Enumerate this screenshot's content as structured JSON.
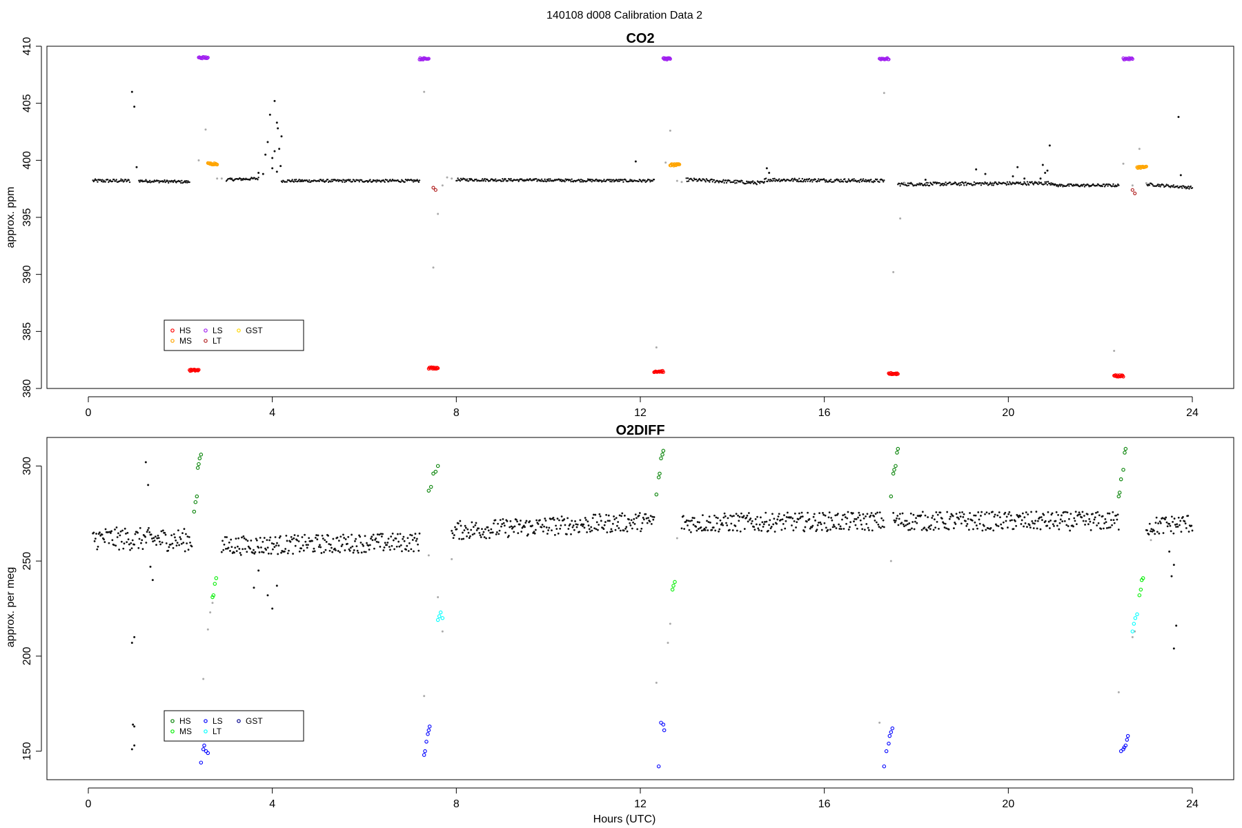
{
  "page": {
    "main_title": "140108   d008   Calibration Data 2"
  },
  "chart_data": [
    {
      "type": "scatter",
      "title": "CO2",
      "xlabel": "",
      "ylabel": "approx. ppm",
      "xlim": [
        -0.9,
        24.9
      ],
      "ylim": [
        380,
        410
      ],
      "xticks": [
        0,
        4,
        8,
        12,
        16,
        20,
        24
      ],
      "yticks": [
        380,
        385,
        390,
        395,
        400,
        405,
        410
      ],
      "legend": {
        "position": "bottom-left",
        "entries": [
          {
            "label": "HS",
            "color": "#ff0000"
          },
          {
            "label": "MS",
            "color": "#ffa500"
          },
          {
            "label": "LS",
            "color": "#a020f0"
          },
          {
            "label": "LT",
            "color": "#b22222"
          },
          {
            "label": "GST",
            "color": "#ffd700"
          }
        ]
      },
      "baseline_segments": [
        {
          "x": [
            0.1,
            0.9
          ],
          "y": [
            398.2,
            398.2
          ],
          "noise": 0.15
        },
        {
          "x": [
            1.1,
            2.2
          ],
          "y": [
            398.2,
            398.1
          ],
          "noise": 0.12
        },
        {
          "x": [
            3.0,
            3.7
          ],
          "y": [
            398.3,
            398.4
          ],
          "noise": 0.12
        },
        {
          "x": [
            4.2,
            7.2
          ],
          "y": [
            398.2,
            398.2
          ],
          "noise": 0.12
        },
        {
          "x": [
            8.0,
            12.3
          ],
          "y": [
            398.3,
            398.2
          ],
          "noise": 0.12
        },
        {
          "x": [
            13.0,
            14.7
          ],
          "y": [
            398.3,
            398.0
          ],
          "noise": 0.15
        },
        {
          "x": [
            14.7,
            17.3
          ],
          "y": [
            398.3,
            398.2
          ],
          "noise": 0.15
        },
        {
          "x": [
            17.6,
            21.0
          ],
          "y": [
            397.9,
            398.0
          ],
          "noise": 0.15
        },
        {
          "x": [
            21.0,
            22.4
          ],
          "y": [
            397.8,
            397.8
          ],
          "noise": 0.12
        },
        {
          "x": [
            23.0,
            24.0
          ],
          "y": [
            397.9,
            397.6
          ],
          "noise": 0.12
        }
      ],
      "scatter_black": [
        {
          "x": 0.95,
          "y": 406.0
        },
        {
          "x": 1.0,
          "y": 404.7
        },
        {
          "x": 1.05,
          "y": 399.4
        },
        {
          "x": 3.8,
          "y": 398.8
        },
        {
          "x": 3.85,
          "y": 400.5
        },
        {
          "x": 3.9,
          "y": 401.6
        },
        {
          "x": 3.95,
          "y": 404.0
        },
        {
          "x": 4.0,
          "y": 400.2
        },
        {
          "x": 4.05,
          "y": 400.8
        },
        {
          "x": 4.1,
          "y": 403.3
        },
        {
          "x": 4.12,
          "y": 402.8
        },
        {
          "x": 4.15,
          "y": 401.0
        },
        {
          "x": 4.18,
          "y": 399.5
        },
        {
          "x": 4.2,
          "y": 402.1
        },
        {
          "x": 4.05,
          "y": 405.2
        },
        {
          "x": 3.7,
          "y": 398.9
        },
        {
          "x": 4.0,
          "y": 399.3
        },
        {
          "x": 4.1,
          "y": 399.0
        },
        {
          "x": 11.9,
          "y": 399.9
        },
        {
          "x": 14.75,
          "y": 399.3
        },
        {
          "x": 14.8,
          "y": 398.9
        },
        {
          "x": 18.2,
          "y": 398.3
        },
        {
          "x": 19.3,
          "y": 399.2
        },
        {
          "x": 19.5,
          "y": 398.8
        },
        {
          "x": 20.1,
          "y": 398.6
        },
        {
          "x": 20.2,
          "y": 399.4
        },
        {
          "x": 20.35,
          "y": 398.4
        },
        {
          "x": 20.75,
          "y": 399.6
        },
        {
          "x": 20.8,
          "y": 398.9
        },
        {
          "x": 20.85,
          "y": 399.1
        },
        {
          "x": 20.7,
          "y": 398.4
        },
        {
          "x": 20.9,
          "y": 401.3
        },
        {
          "x": 23.7,
          "y": 403.8
        },
        {
          "x": 23.75,
          "y": 398.7
        }
      ],
      "scatter_gray": [
        {
          "x": 2.4,
          "y": 400.0
        },
        {
          "x": 2.55,
          "y": 402.7
        },
        {
          "x": 2.8,
          "y": 398.4
        },
        {
          "x": 2.9,
          "y": 398.4
        },
        {
          "x": 7.3,
          "y": 406.0
        },
        {
          "x": 7.5,
          "y": 390.6
        },
        {
          "x": 7.6,
          "y": 395.3
        },
        {
          "x": 7.7,
          "y": 397.8
        },
        {
          "x": 7.8,
          "y": 398.5
        },
        {
          "x": 7.9,
          "y": 398.4
        },
        {
          "x": 12.35,
          "y": 383.6
        },
        {
          "x": 12.55,
          "y": 399.8
        },
        {
          "x": 12.65,
          "y": 402.6
        },
        {
          "x": 12.8,
          "y": 398.2
        },
        {
          "x": 12.9,
          "y": 398.1
        },
        {
          "x": 17.3,
          "y": 405.9
        },
        {
          "x": 17.5,
          "y": 390.2
        },
        {
          "x": 17.65,
          "y": 394.9
        },
        {
          "x": 17.75,
          "y": 398.0
        },
        {
          "x": 22.3,
          "y": 383.3
        },
        {
          "x": 22.5,
          "y": 399.7
        },
        {
          "x": 22.7,
          "y": 397.8
        },
        {
          "x": 22.85,
          "y": 401.0
        },
        {
          "x": 23.0,
          "y": 398.0
        }
      ],
      "cal_groups": [
        {
          "name": "HS",
          "color": "#ff0000",
          "x": [
            2.2,
            2.4
          ],
          "y": 381.6
        },
        {
          "name": "LS",
          "color": "#a020f0",
          "x": [
            2.4,
            2.6
          ],
          "y": 409.0
        },
        {
          "name": "MS",
          "color": "#ffa500",
          "x": [
            2.6,
            2.8
          ],
          "y": 399.7
        },
        {
          "name": "HS",
          "color": "#ff0000",
          "x": [
            7.4,
            7.6
          ],
          "y": 381.8
        },
        {
          "name": "LS",
          "color": "#a020f0",
          "x": [
            7.2,
            7.4
          ],
          "y": 408.9
        },
        {
          "name": "HS",
          "color": "#ff0000",
          "x": [
            12.3,
            12.5
          ],
          "y": 381.5
        },
        {
          "name": "LS",
          "color": "#a020f0",
          "x": [
            12.5,
            12.65
          ],
          "y": 408.9
        },
        {
          "name": "MS",
          "color": "#ffa500",
          "x": [
            12.65,
            12.85
          ],
          "y": 399.6
        },
        {
          "name": "HS",
          "color": "#ff0000",
          "x": [
            17.4,
            17.6
          ],
          "y": 381.3
        },
        {
          "name": "LS",
          "color": "#a020f0",
          "x": [
            17.2,
            17.4
          ],
          "y": 408.9
        },
        {
          "name": "HS",
          "color": "#ff0000",
          "x": [
            22.3,
            22.5
          ],
          "y": 381.1
        },
        {
          "name": "LS",
          "color": "#a020f0",
          "x": [
            22.5,
            22.7
          ],
          "y": 408.9
        },
        {
          "name": "MS",
          "color": "#ffa500",
          "x": [
            22.8,
            23.0
          ],
          "y": 399.4
        }
      ],
      "lt_points": [
        {
          "x": 7.5,
          "y": 397.6,
          "color": "#b22222"
        },
        {
          "x": 7.55,
          "y": 397.4,
          "color": "#b22222"
        },
        {
          "x": 22.75,
          "y": 397.1,
          "color": "#b22222"
        },
        {
          "x": 22.7,
          "y": 397.4,
          "color": "#b22222"
        }
      ]
    },
    {
      "type": "scatter",
      "title": "O2DIFF",
      "xlabel": "Hours (UTC)",
      "ylabel": "approx. per meg",
      "xlim": [
        -0.9,
        24.9
      ],
      "ylim": [
        135,
        315
      ],
      "xticks": [
        0,
        4,
        8,
        12,
        16,
        20,
        24
      ],
      "yticks": [
        150,
        200,
        250,
        300
      ],
      "legend": {
        "position": "bottom-left",
        "entries": [
          {
            "label": "HS",
            "color": "#008000"
          },
          {
            "label": "MS",
            "color": "#00ee00"
          },
          {
            "label": "LS",
            "color": "#0000ff"
          },
          {
            "label": "LT",
            "color": "#00ffff"
          },
          {
            "label": "GST",
            "color": "#00008b"
          }
        ]
      },
      "baseline_segments": [
        {
          "x": [
            0.1,
            2.25
          ],
          "y": [
            262,
            261
          ],
          "noise": 6
        },
        {
          "x": [
            2.9,
            7.2
          ],
          "y": [
            258,
            260
          ],
          "noise": 5
        },
        {
          "x": [
            7.9,
            12.3
          ],
          "y": [
            266,
            271
          ],
          "noise": 5
        },
        {
          "x": [
            12.9,
            17.3
          ],
          "y": [
            270,
            271
          ],
          "noise": 5
        },
        {
          "x": [
            17.5,
            22.4
          ],
          "y": [
            271,
            271
          ],
          "noise": 5
        },
        {
          "x": [
            23.0,
            24.0
          ],
          "y": [
            268,
            270
          ],
          "noise": 5
        }
      ],
      "scatter_black": [
        {
          "x": 0.95,
          "y": 207
        },
        {
          "x": 1.0,
          "y": 210
        },
        {
          "x": 0.97,
          "y": 164
        },
        {
          "x": 1.0,
          "y": 163
        },
        {
          "x": 0.95,
          "y": 151
        },
        {
          "x": 1.0,
          "y": 153
        },
        {
          "x": 1.25,
          "y": 302
        },
        {
          "x": 1.3,
          "y": 290
        },
        {
          "x": 1.35,
          "y": 247
        },
        {
          "x": 1.4,
          "y": 240
        },
        {
          "x": 3.6,
          "y": 236
        },
        {
          "x": 3.9,
          "y": 232
        },
        {
          "x": 4.0,
          "y": 225
        },
        {
          "x": 4.1,
          "y": 237
        },
        {
          "x": 3.7,
          "y": 245
        },
        {
          "x": 23.6,
          "y": 248
        },
        {
          "x": 23.55,
          "y": 242
        },
        {
          "x": 23.65,
          "y": 216
        },
        {
          "x": 23.6,
          "y": 204
        },
        {
          "x": 23.5,
          "y": 255
        }
      ],
      "scatter_gray": [
        {
          "x": 2.5,
          "y": 188
        },
        {
          "x": 2.6,
          "y": 214
        },
        {
          "x": 2.65,
          "y": 223
        },
        {
          "x": 2.7,
          "y": 228
        },
        {
          "x": 7.3,
          "y": 179
        },
        {
          "x": 7.4,
          "y": 253
        },
        {
          "x": 7.6,
          "y": 231
        },
        {
          "x": 7.7,
          "y": 213
        },
        {
          "x": 7.9,
          "y": 251
        },
        {
          "x": 12.35,
          "y": 186
        },
        {
          "x": 12.6,
          "y": 207
        },
        {
          "x": 12.65,
          "y": 217
        },
        {
          "x": 12.8,
          "y": 262
        },
        {
          "x": 17.2,
          "y": 165
        },
        {
          "x": 17.45,
          "y": 250
        },
        {
          "x": 22.4,
          "y": 181
        },
        {
          "x": 22.7,
          "y": 210
        },
        {
          "x": 22.75,
          "y": 213
        },
        {
          "x": 23.1,
          "y": 261
        }
      ],
      "marker_points": [
        {
          "name": "HS",
          "color": "#008000",
          "points": [
            [
              2.3,
              276
            ],
            [
              2.33,
              281
            ],
            [
              2.36,
              284
            ],
            [
              2.38,
              299
            ],
            [
              2.4,
              301
            ],
            [
              2.42,
              304
            ],
            [
              2.45,
              306
            ],
            [
              7.4,
              287
            ],
            [
              7.45,
              289
            ],
            [
              7.5,
              296
            ],
            [
              7.55,
              297
            ],
            [
              7.6,
              300
            ],
            [
              12.35,
              285
            ],
            [
              12.4,
              294
            ],
            [
              12.42,
              296
            ],
            [
              12.45,
              304
            ],
            [
              12.48,
              306
            ],
            [
              12.5,
              308
            ],
            [
              17.45,
              284
            ],
            [
              17.5,
              296
            ],
            [
              17.52,
              298
            ],
            [
              17.55,
              300
            ],
            [
              17.58,
              307
            ],
            [
              17.6,
              309
            ],
            [
              22.4,
              284
            ],
            [
              22.42,
              286
            ],
            [
              22.45,
              293
            ],
            [
              22.5,
              298
            ],
            [
              22.53,
              307
            ],
            [
              22.55,
              309
            ]
          ]
        },
        {
          "name": "MS",
          "color": "#00ee00",
          "points": [
            [
              2.7,
              231
            ],
            [
              2.72,
              232
            ],
            [
              2.75,
              238
            ],
            [
              2.78,
              241
            ],
            [
              12.7,
              235
            ],
            [
              12.72,
              237
            ],
            [
              12.75,
              239
            ],
            [
              22.85,
              232
            ],
            [
              22.88,
              235
            ],
            [
              22.9,
              240
            ],
            [
              22.93,
              241
            ]
          ]
        },
        {
          "name": "LS",
          "color": "#0000ff",
          "points": [
            [
              2.45,
              144
            ],
            [
              2.5,
              151
            ],
            [
              2.52,
              153
            ],
            [
              2.56,
              150
            ],
            [
              2.6,
              149
            ],
            [
              7.3,
              148
            ],
            [
              7.32,
              150
            ],
            [
              7.35,
              155
            ],
            [
              7.38,
              159
            ],
            [
              7.4,
              161
            ],
            [
              7.42,
              163
            ],
            [
              12.4,
              142
            ],
            [
              12.45,
              165
            ],
            [
              12.5,
              164
            ],
            [
              12.52,
              161
            ],
            [
              17.3,
              142
            ],
            [
              17.35,
              150
            ],
            [
              17.4,
              154
            ],
            [
              17.42,
              158
            ],
            [
              17.45,
              160
            ],
            [
              17.48,
              162
            ],
            [
              22.45,
              150
            ],
            [
              22.5,
              151
            ],
            [
              22.52,
              152
            ],
            [
              22.55,
              153
            ],
            [
              22.58,
              156
            ],
            [
              22.6,
              158
            ]
          ]
        },
        {
          "name": "LT",
          "color": "#00ffff",
          "points": [
            [
              7.6,
              219
            ],
            [
              7.63,
              221
            ],
            [
              7.66,
              223
            ],
            [
              7.7,
              220
            ],
            [
              22.7,
              213
            ],
            [
              22.73,
              217
            ],
            [
              22.76,
              220
            ],
            [
              22.8,
              222
            ]
          ]
        }
      ]
    }
  ]
}
